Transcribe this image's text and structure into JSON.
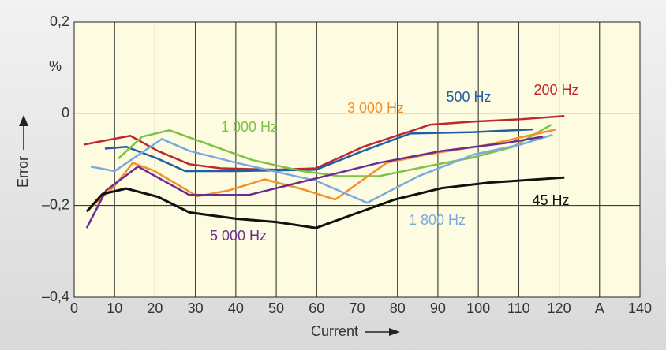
{
  "chart_data": {
    "type": "line",
    "xlabel": "Current",
    "ylabel": "Error",
    "y_unit": "%",
    "xlim": [
      0,
      140
    ],
    "ylim": [
      -0.4,
      0.2
    ],
    "xticks": [
      0,
      10,
      20,
      30,
      40,
      50,
      60,
      70,
      80,
      90,
      100,
      110,
      120,
      {
        "value": 130,
        "label": "A"
      },
      140
    ],
    "yticks": [
      {
        "value": -0.4,
        "label": "–0,4"
      },
      {
        "value": -0.2,
        "label": "–0,2"
      },
      0,
      {
        "value": 0.2,
        "label": "0,2"
      }
    ],
    "grid": true,
    "series": [
      {
        "name": "200 Hz",
        "color": "#c0272d",
        "x": [
          2.5,
          13.9,
          20.7,
          28.5,
          36.3,
          50,
          59.8,
          71.5,
          88,
          98.8,
          110.5,
          121.3
        ],
        "values": [
          -0.067,
          -0.048,
          -0.081,
          -0.11,
          -0.119,
          -0.122,
          -0.119,
          -0.072,
          -0.024,
          -0.017,
          -0.012,
          -0.005
        ]
      },
      {
        "name": "500 Hz",
        "color": "#1f5fa8",
        "x": [
          7.6,
          12.9,
          20.7,
          27.5,
          40.2,
          59.8,
          71.5,
          83.2,
          98.8,
          113.5
        ],
        "values": [
          -0.076,
          -0.072,
          -0.098,
          -0.125,
          -0.125,
          -0.122,
          -0.081,
          -0.043,
          -0.04,
          -0.034
        ]
      },
      {
        "name": "1 000 Hz",
        "color": "#7dc242",
        "x": [
          10.9,
          16.8,
          23.6,
          32.4,
          44.1,
          55.9,
          65.6,
          75.4,
          87.1,
          98.8,
          108.6,
          118
        ],
        "values": [
          -0.098,
          -0.05,
          -0.036,
          -0.064,
          -0.101,
          -0.124,
          -0.136,
          -0.136,
          -0.115,
          -0.095,
          -0.072,
          -0.024
        ]
      },
      {
        "name": "3 000 Hz",
        "color": "#f0922b",
        "x": [
          3.5,
          9.96,
          14.5,
          19.7,
          30.5,
          38.3,
          47.1,
          55.9,
          64.6,
          77.3,
          87.1,
          102.7,
          119.3
        ],
        "values": [
          -0.21,
          -0.158,
          -0.107,
          -0.124,
          -0.18,
          -0.167,
          -0.143,
          -0.163,
          -0.187,
          -0.107,
          -0.089,
          -0.067,
          -0.034
        ]
      },
      {
        "name": "1 800 Hz",
        "color": "#7aaadd",
        "x": [
          4.1,
          10,
          21.7,
          28.5,
          40.2,
          59.8,
          72.5,
          85.2,
          98.8,
          110.5,
          118.4
        ],
        "values": [
          -0.115,
          -0.125,
          -0.055,
          -0.081,
          -0.107,
          -0.146,
          -0.194,
          -0.136,
          -0.089,
          -0.067,
          -0.046
        ]
      },
      {
        "name": "5 000 Hz",
        "color": "#6a2d91",
        "x": [
          3.1,
          7.9,
          15.8,
          28.5,
          43.2,
          59.8,
          75.4,
          91,
          106.6,
          116
        ],
        "values": [
          -0.249,
          -0.167,
          -0.115,
          -0.177,
          -0.177,
          -0.141,
          -0.107,
          -0.081,
          -0.064,
          -0.05
        ]
      },
      {
        "name": "45 Hz",
        "color": "#111111",
        "x": [
          3.1,
          7,
          12.9,
          20.7,
          28.5,
          40.2,
          50,
          59.8,
          69.5,
          79.3,
          91,
          102.7,
          121.3
        ],
        "values": [
          -0.213,
          -0.175,
          -0.163,
          -0.181,
          -0.215,
          -0.229,
          -0.236,
          -0.249,
          -0.218,
          -0.187,
          -0.162,
          -0.15,
          -0.139
        ]
      }
    ]
  }
}
